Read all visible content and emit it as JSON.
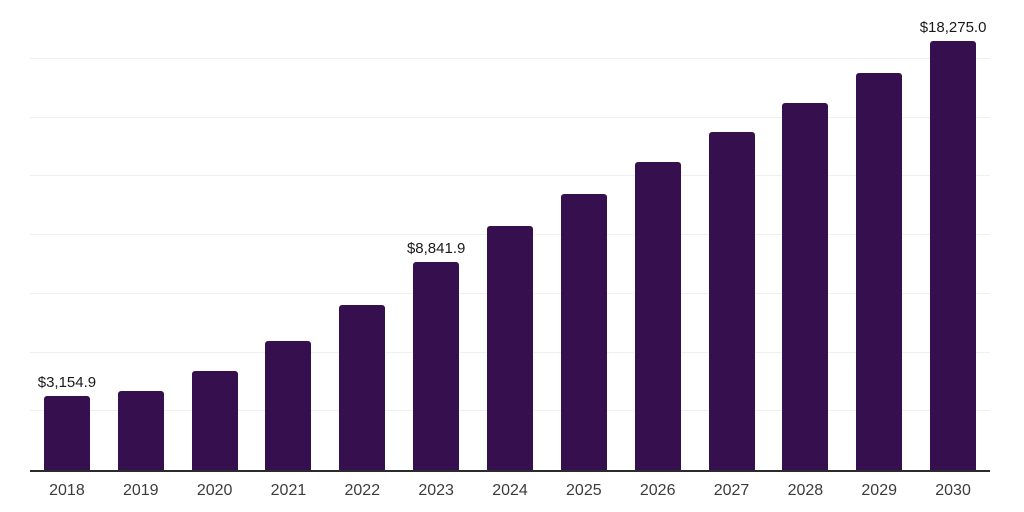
{
  "chart": {
    "colors": {
      "background": "#ffffff",
      "bar": "#36104E",
      "grid": "#f0eff2",
      "axis": "#2b2b2b",
      "value_label": "#1a1a1a",
      "tick_label": "#3c3c3c"
    }
  },
  "chart_data": {
    "type": "bar",
    "title": "",
    "xlabel": "",
    "ylabel": "",
    "categories": [
      "2018",
      "2019",
      "2020",
      "2021",
      "2022",
      "2023",
      "2024",
      "2025",
      "2026",
      "2027",
      "2028",
      "2029",
      "2030"
    ],
    "values": [
      3154.9,
      3370,
      4210,
      5500,
      7030,
      8841.9,
      10370,
      11760,
      13110,
      14390,
      15600,
      16900,
      18275.0
    ],
    "value_labels": [
      {
        "index": 0,
        "text": "$3,154.9"
      },
      {
        "index": 5,
        "text": "$8,841.9"
      },
      {
        "index": 12,
        "text": "$18,275.0"
      }
    ],
    "ylim": [
      0,
      20000
    ],
    "gridline_step": 2500,
    "grid": true,
    "legend": "none"
  }
}
